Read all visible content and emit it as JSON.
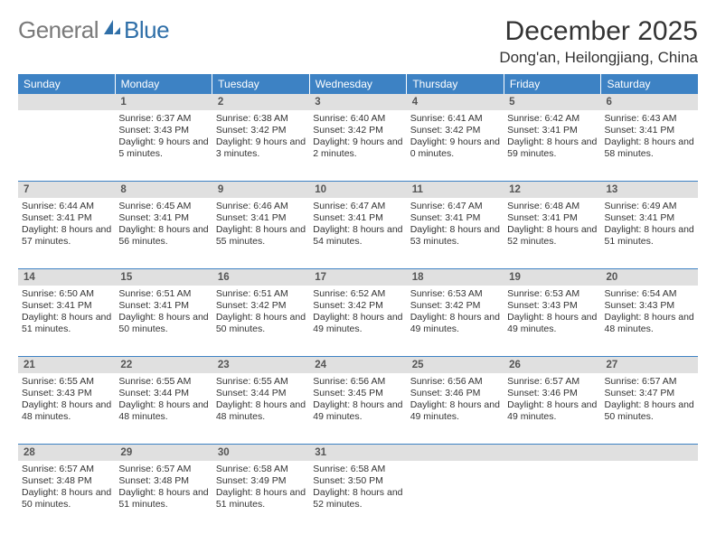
{
  "brand": {
    "first": "General",
    "second": "Blue"
  },
  "title": "December 2025",
  "location": "Dong'an, Heilongjiang, China",
  "colors": {
    "header_bg": "#3d82c4",
    "daynum_bg": "#e0e0e0",
    "row_border": "#3d82c4",
    "logo_gray": "#7a7a7a",
    "logo_blue": "#2f6fa8"
  },
  "weekdays": [
    "Sunday",
    "Monday",
    "Tuesday",
    "Wednesday",
    "Thursday",
    "Friday",
    "Saturday"
  ],
  "weeks": [
    [
      {
        "num": "",
        "sunrise": "",
        "sunset": "",
        "daylight": ""
      },
      {
        "num": "1",
        "sunrise": "Sunrise: 6:37 AM",
        "sunset": "Sunset: 3:43 PM",
        "daylight": "Daylight: 9 hours and 5 minutes."
      },
      {
        "num": "2",
        "sunrise": "Sunrise: 6:38 AM",
        "sunset": "Sunset: 3:42 PM",
        "daylight": "Daylight: 9 hours and 3 minutes."
      },
      {
        "num": "3",
        "sunrise": "Sunrise: 6:40 AM",
        "sunset": "Sunset: 3:42 PM",
        "daylight": "Daylight: 9 hours and 2 minutes."
      },
      {
        "num": "4",
        "sunrise": "Sunrise: 6:41 AM",
        "sunset": "Sunset: 3:42 PM",
        "daylight": "Daylight: 9 hours and 0 minutes."
      },
      {
        "num": "5",
        "sunrise": "Sunrise: 6:42 AM",
        "sunset": "Sunset: 3:41 PM",
        "daylight": "Daylight: 8 hours and 59 minutes."
      },
      {
        "num": "6",
        "sunrise": "Sunrise: 6:43 AM",
        "sunset": "Sunset: 3:41 PM",
        "daylight": "Daylight: 8 hours and 58 minutes."
      }
    ],
    [
      {
        "num": "7",
        "sunrise": "Sunrise: 6:44 AM",
        "sunset": "Sunset: 3:41 PM",
        "daylight": "Daylight: 8 hours and 57 minutes."
      },
      {
        "num": "8",
        "sunrise": "Sunrise: 6:45 AM",
        "sunset": "Sunset: 3:41 PM",
        "daylight": "Daylight: 8 hours and 56 minutes."
      },
      {
        "num": "9",
        "sunrise": "Sunrise: 6:46 AM",
        "sunset": "Sunset: 3:41 PM",
        "daylight": "Daylight: 8 hours and 55 minutes."
      },
      {
        "num": "10",
        "sunrise": "Sunrise: 6:47 AM",
        "sunset": "Sunset: 3:41 PM",
        "daylight": "Daylight: 8 hours and 54 minutes."
      },
      {
        "num": "11",
        "sunrise": "Sunrise: 6:47 AM",
        "sunset": "Sunset: 3:41 PM",
        "daylight": "Daylight: 8 hours and 53 minutes."
      },
      {
        "num": "12",
        "sunrise": "Sunrise: 6:48 AM",
        "sunset": "Sunset: 3:41 PM",
        "daylight": "Daylight: 8 hours and 52 minutes."
      },
      {
        "num": "13",
        "sunrise": "Sunrise: 6:49 AM",
        "sunset": "Sunset: 3:41 PM",
        "daylight": "Daylight: 8 hours and 51 minutes."
      }
    ],
    [
      {
        "num": "14",
        "sunrise": "Sunrise: 6:50 AM",
        "sunset": "Sunset: 3:41 PM",
        "daylight": "Daylight: 8 hours and 51 minutes."
      },
      {
        "num": "15",
        "sunrise": "Sunrise: 6:51 AM",
        "sunset": "Sunset: 3:41 PM",
        "daylight": "Daylight: 8 hours and 50 minutes."
      },
      {
        "num": "16",
        "sunrise": "Sunrise: 6:51 AM",
        "sunset": "Sunset: 3:42 PM",
        "daylight": "Daylight: 8 hours and 50 minutes."
      },
      {
        "num": "17",
        "sunrise": "Sunrise: 6:52 AM",
        "sunset": "Sunset: 3:42 PM",
        "daylight": "Daylight: 8 hours and 49 minutes."
      },
      {
        "num": "18",
        "sunrise": "Sunrise: 6:53 AM",
        "sunset": "Sunset: 3:42 PM",
        "daylight": "Daylight: 8 hours and 49 minutes."
      },
      {
        "num": "19",
        "sunrise": "Sunrise: 6:53 AM",
        "sunset": "Sunset: 3:43 PM",
        "daylight": "Daylight: 8 hours and 49 minutes."
      },
      {
        "num": "20",
        "sunrise": "Sunrise: 6:54 AM",
        "sunset": "Sunset: 3:43 PM",
        "daylight": "Daylight: 8 hours and 48 minutes."
      }
    ],
    [
      {
        "num": "21",
        "sunrise": "Sunrise: 6:55 AM",
        "sunset": "Sunset: 3:43 PM",
        "daylight": "Daylight: 8 hours and 48 minutes."
      },
      {
        "num": "22",
        "sunrise": "Sunrise: 6:55 AM",
        "sunset": "Sunset: 3:44 PM",
        "daylight": "Daylight: 8 hours and 48 minutes."
      },
      {
        "num": "23",
        "sunrise": "Sunrise: 6:55 AM",
        "sunset": "Sunset: 3:44 PM",
        "daylight": "Daylight: 8 hours and 48 minutes."
      },
      {
        "num": "24",
        "sunrise": "Sunrise: 6:56 AM",
        "sunset": "Sunset: 3:45 PM",
        "daylight": "Daylight: 8 hours and 49 minutes."
      },
      {
        "num": "25",
        "sunrise": "Sunrise: 6:56 AM",
        "sunset": "Sunset: 3:46 PM",
        "daylight": "Daylight: 8 hours and 49 minutes."
      },
      {
        "num": "26",
        "sunrise": "Sunrise: 6:57 AM",
        "sunset": "Sunset: 3:46 PM",
        "daylight": "Daylight: 8 hours and 49 minutes."
      },
      {
        "num": "27",
        "sunrise": "Sunrise: 6:57 AM",
        "sunset": "Sunset: 3:47 PM",
        "daylight": "Daylight: 8 hours and 50 minutes."
      }
    ],
    [
      {
        "num": "28",
        "sunrise": "Sunrise: 6:57 AM",
        "sunset": "Sunset: 3:48 PM",
        "daylight": "Daylight: 8 hours and 50 minutes."
      },
      {
        "num": "29",
        "sunrise": "Sunrise: 6:57 AM",
        "sunset": "Sunset: 3:48 PM",
        "daylight": "Daylight: 8 hours and 51 minutes."
      },
      {
        "num": "30",
        "sunrise": "Sunrise: 6:58 AM",
        "sunset": "Sunset: 3:49 PM",
        "daylight": "Daylight: 8 hours and 51 minutes."
      },
      {
        "num": "31",
        "sunrise": "Sunrise: 6:58 AM",
        "sunset": "Sunset: 3:50 PM",
        "daylight": "Daylight: 8 hours and 52 minutes."
      },
      {
        "num": "",
        "sunrise": "",
        "sunset": "",
        "daylight": ""
      },
      {
        "num": "",
        "sunrise": "",
        "sunset": "",
        "daylight": ""
      },
      {
        "num": "",
        "sunrise": "",
        "sunset": "",
        "daylight": ""
      }
    ]
  ]
}
